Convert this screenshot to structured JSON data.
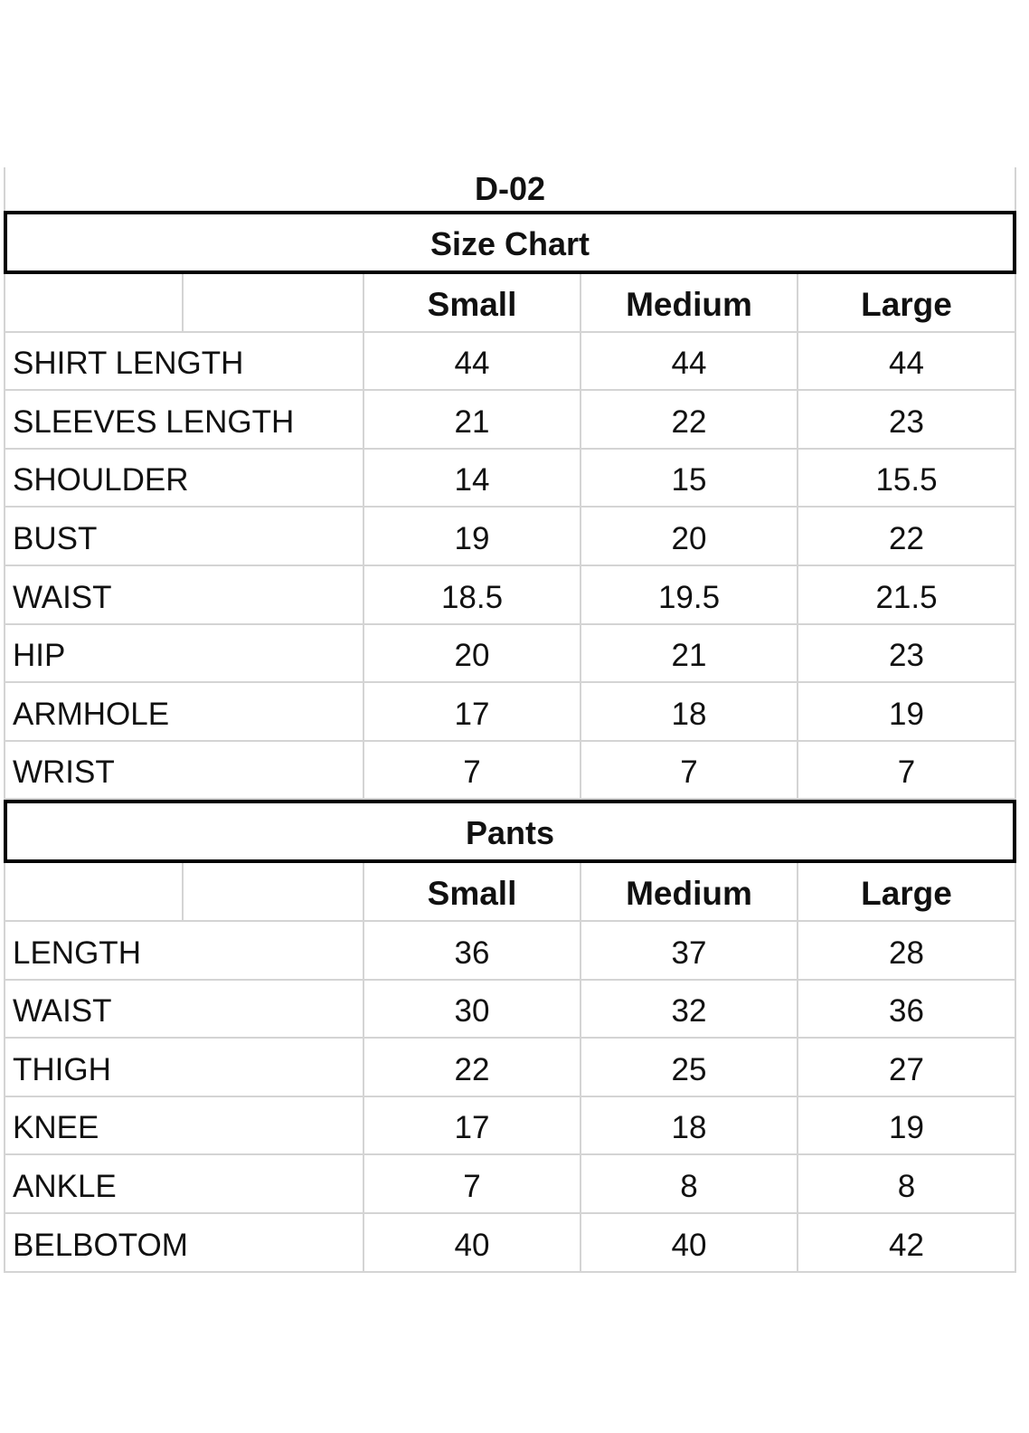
{
  "title": "D-02",
  "sections": [
    {
      "heading": "Size Chart",
      "columns": [
        "Small",
        "Medium",
        "Large"
      ],
      "rows": [
        {
          "label": "SHIRT LENGTH",
          "values": [
            "44",
            "44",
            "44"
          ]
        },
        {
          "label": "SLEEVES LENGTH",
          "values": [
            "21",
            "22",
            "23"
          ]
        },
        {
          "label": "SHOULDER",
          "values": [
            "14",
            "15",
            "15.5"
          ]
        },
        {
          "label": "BUST",
          "values": [
            "19",
            "20",
            "22"
          ]
        },
        {
          "label": "WAIST",
          "values": [
            "18.5",
            "19.5",
            "21.5"
          ]
        },
        {
          "label": "HIP",
          "values": [
            "20",
            "21",
            "23"
          ]
        },
        {
          "label": "ARMHOLE",
          "values": [
            "17",
            "18",
            "19"
          ]
        },
        {
          "label": "WRIST",
          "values": [
            "7",
            "7",
            "7"
          ]
        }
      ]
    },
    {
      "heading": "Pants",
      "columns": [
        "Small",
        "Medium",
        "Large"
      ],
      "rows": [
        {
          "label": "LENGTH",
          "values": [
            "36",
            "37",
            "28"
          ]
        },
        {
          "label": "WAIST",
          "values": [
            "30",
            "32",
            "36"
          ]
        },
        {
          "label": "THIGH",
          "values": [
            "22",
            "25",
            "27"
          ]
        },
        {
          "label": "KNEE",
          "values": [
            "17",
            "18",
            "19"
          ]
        },
        {
          "label": "ANKLE",
          "values": [
            "7",
            "8",
            "8"
          ]
        },
        {
          "label": "BELBOTOM",
          "values": [
            "40",
            "40",
            "42"
          ]
        }
      ]
    }
  ]
}
